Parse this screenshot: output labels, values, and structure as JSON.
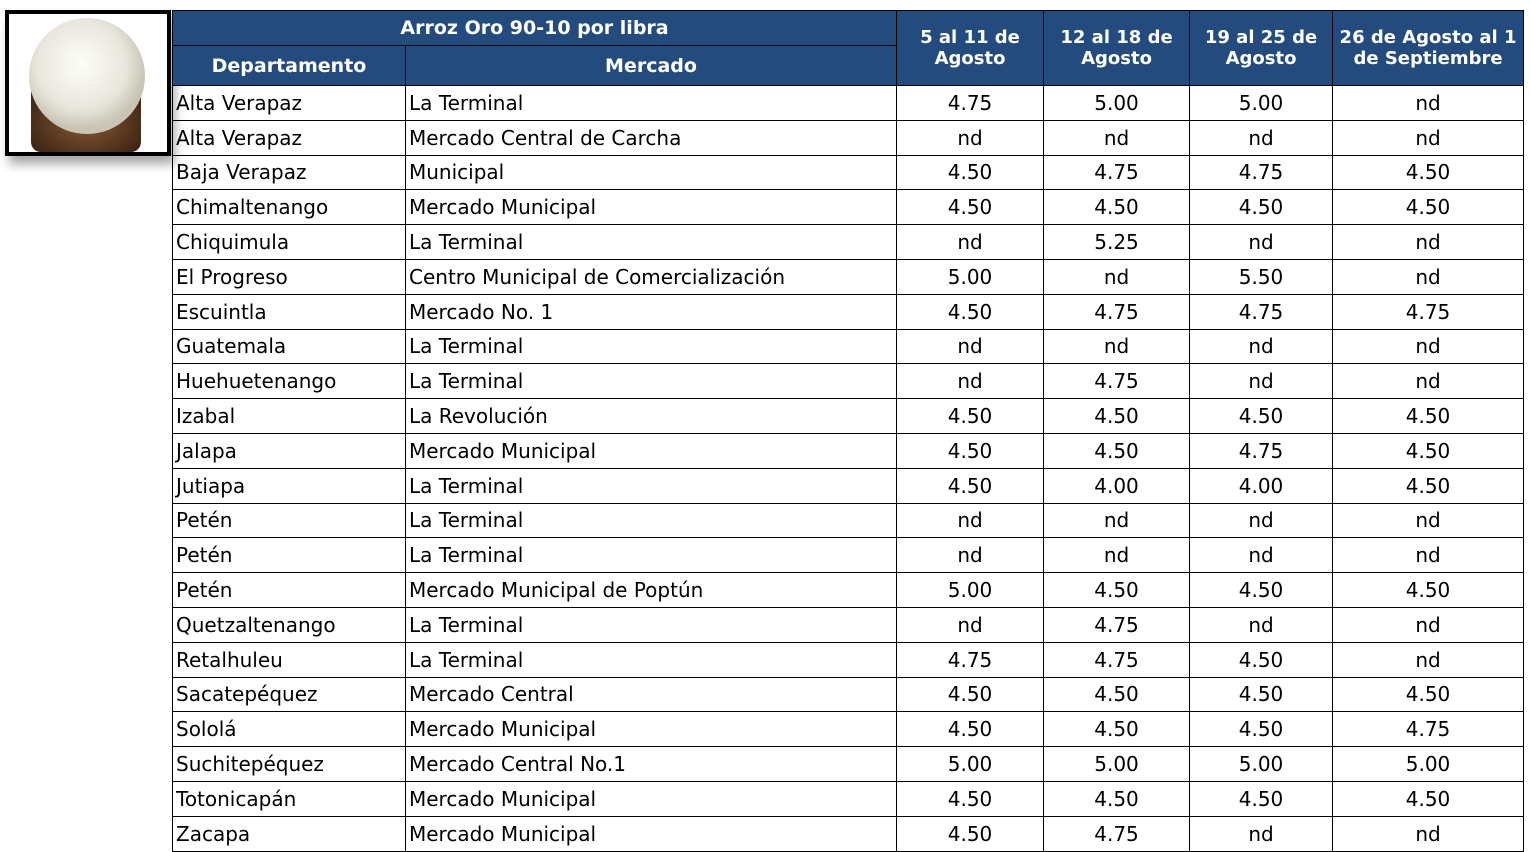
{
  "header": {
    "title": "Arroz Oro 90-10 por libra",
    "columns": [
      "Departamento",
      "Mercado",
      "5 al 11 de Agosto",
      "12 al 18 de Agosto",
      "19 al 25 de Agosto",
      "26 de Agosto al 1 de Septiembre"
    ]
  },
  "table": {
    "rows": [
      [
        "Alta Verapaz",
        "La Terminal",
        "4.75",
        "5.00",
        "5.00",
        "nd"
      ],
      [
        "Alta Verapaz",
        "Mercado Central de Carcha",
        "nd",
        "nd",
        "nd",
        "nd"
      ],
      [
        "Baja Verapaz",
        "Municipal",
        "4.50",
        "4.75",
        "4.75",
        "4.50"
      ],
      [
        "Chimaltenango",
        "Mercado Municipal",
        "4.50",
        "4.50",
        "4.50",
        "4.50"
      ],
      [
        "Chiquimula",
        "La Terminal",
        "nd",
        "5.25",
        "nd",
        "nd"
      ],
      [
        "El Progreso",
        "Centro Municipal de Comercialización",
        "5.00",
        "nd",
        "5.50",
        "nd"
      ],
      [
        "Escuintla",
        "Mercado No. 1",
        "4.50",
        "4.75",
        "4.75",
        "4.75"
      ],
      [
        "Guatemala",
        "La Terminal",
        "nd",
        "nd",
        "nd",
        "nd"
      ],
      [
        "Huehuetenango",
        "La Terminal",
        "nd",
        "4.75",
        "nd",
        "nd"
      ],
      [
        "Izabal",
        "La Revolución",
        "4.50",
        "4.50",
        "4.50",
        "4.50"
      ],
      [
        "Jalapa",
        "Mercado Municipal",
        "4.50",
        "4.50",
        "4.75",
        "4.50"
      ],
      [
        "Jutiapa",
        "La Terminal",
        "4.50",
        "4.00",
        "4.00",
        "4.50"
      ],
      [
        "Petén",
        "La Terminal",
        "nd",
        "nd",
        "nd",
        "nd"
      ],
      [
        "Petén",
        "La Terminal",
        "nd",
        "nd",
        "nd",
        "nd"
      ],
      [
        "Petén",
        "Mercado Municipal de Poptún",
        "5.00",
        "4.50",
        "4.50",
        "4.50"
      ],
      [
        "Quetzaltenango",
        "La Terminal",
        "nd",
        "4.75",
        "nd",
        "nd"
      ],
      [
        "Retalhuleu",
        "La Terminal",
        "4.75",
        "4.75",
        "4.50",
        "nd"
      ],
      [
        "Sacatepéquez",
        "Mercado Central",
        "4.50",
        "4.50",
        "4.50",
        "4.50"
      ],
      [
        "Sololá",
        "Mercado Municipal",
        "4.50",
        "4.50",
        "4.50",
        "4.75"
      ],
      [
        "Suchitepéquez",
        "Mercado Central No.1",
        "5.00",
        "5.00",
        "5.00",
        "5.00"
      ],
      [
        "Totonicapán",
        "Mercado Municipal",
        "4.50",
        "4.50",
        "4.50",
        "4.50"
      ],
      [
        "Zacapa",
        "Mercado Municipal",
        "4.50",
        "4.75",
        "nd",
        "nd"
      ]
    ]
  }
}
